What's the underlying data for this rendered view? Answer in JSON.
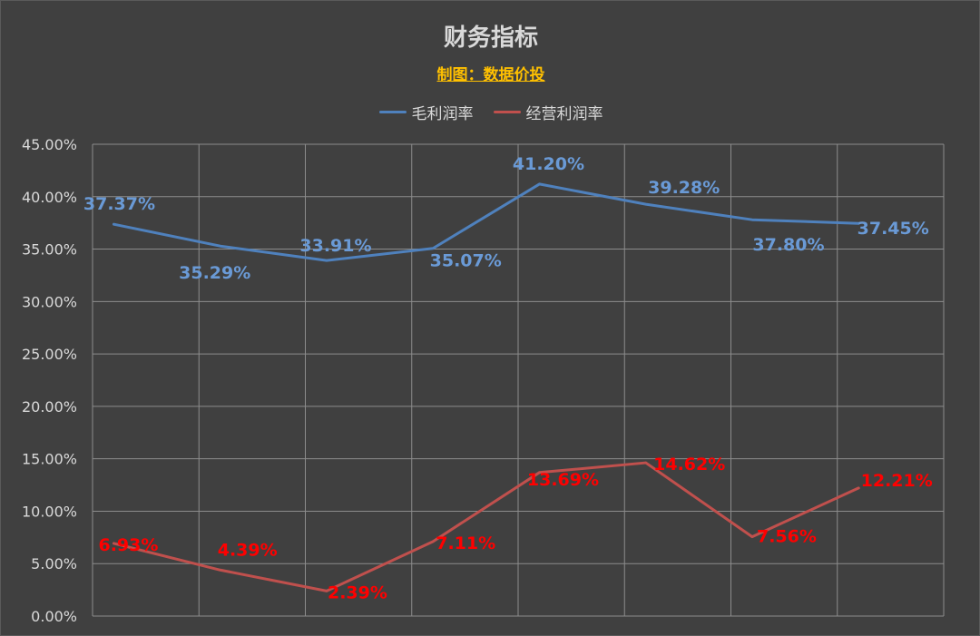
{
  "chart_data": {
    "type": "line",
    "title": "财务指标",
    "subtitle": "制图：数据价投",
    "xlabel": "",
    "ylabel": "",
    "ylim": [
      0,
      45
    ],
    "yticks": [
      0,
      5,
      10,
      15,
      20,
      25,
      30,
      35,
      40,
      45
    ],
    "ytick_format": "percent_2dp",
    "grid": true,
    "legend_position": "top-center",
    "categories": [
      "",
      "",
      "",
      "",
      "",
      "",
      "",
      ""
    ],
    "series": [
      {
        "name": "毛利润率",
        "color": "#4f81bd",
        "label_color": "#6a9ad6",
        "values": [
          37.37,
          35.29,
          33.91,
          35.07,
          41.2,
          39.28,
          37.8,
          37.45
        ],
        "labels": [
          "37.37%",
          "35.29%",
          "33.91%",
          "35.07%",
          "41.20%",
          "39.28%",
          "37.80%",
          "37.45%"
        ]
      },
      {
        "name": "经营利润率",
        "color": "#c0504d",
        "label_color": "#ff0000",
        "values": [
          6.93,
          4.39,
          2.39,
          7.11,
          13.69,
          14.62,
          7.56,
          12.21
        ],
        "labels": [
          "6.93%",
          "4.39%",
          "2.39%",
          "7.11%",
          "13.69%",
          "14.62%",
          "7.56%",
          "12.21%"
        ]
      }
    ]
  }
}
